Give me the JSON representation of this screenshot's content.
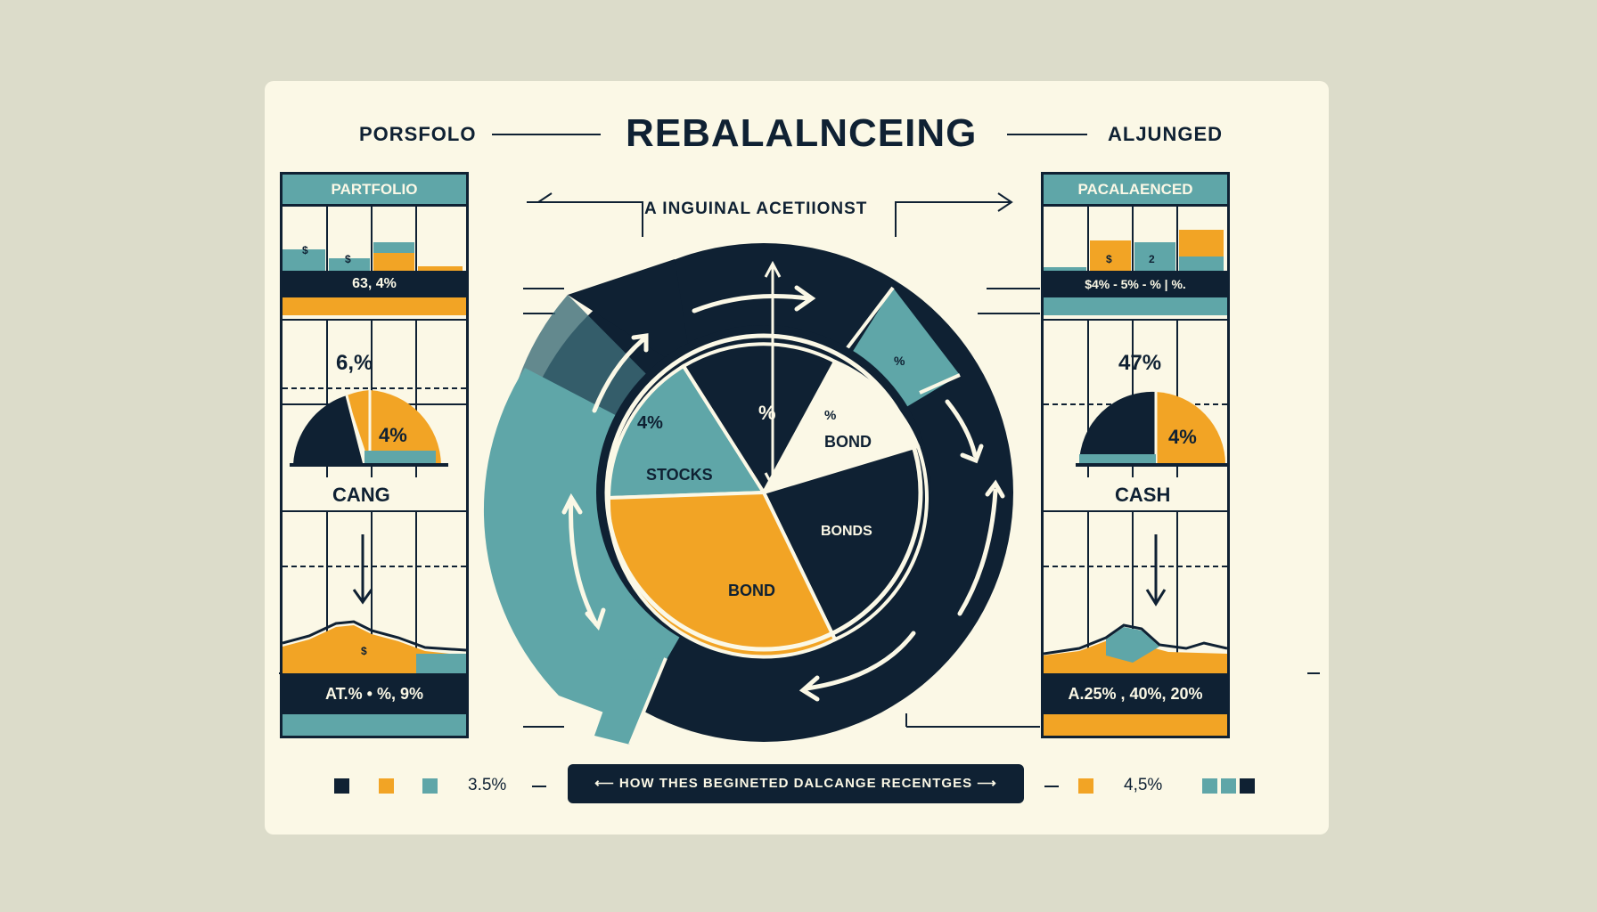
{
  "header": {
    "left_label": "PORSFOLO",
    "title": "REBALALNCEING",
    "right_label": "ALJUNGED",
    "subtitle": "A INGUINAL ACETIIONST"
  },
  "left_panel": {
    "heading": "PARTFOLIO",
    "values_bar": "63, 4%",
    "semi_top": "6,%",
    "semi_inner": "4%",
    "label": "CANG",
    "bottom_values": "AT.% • %, 9%",
    "bar_icons": [
      "$",
      "$"
    ],
    "line_icon": "$"
  },
  "right_panel": {
    "heading": "PACALAENCED",
    "values_bar": "$4% - 5% - % | %.",
    "semi_top": "47%",
    "semi_inner": "4%",
    "label": "CASH",
    "bottom_values": "A.25% , 40%, 20%",
    "bar_icons": [
      "$",
      "2"
    ]
  },
  "pie": {
    "slices": [
      {
        "label": "STOCKS",
        "value_text": "4%",
        "color": "#5fa6a8"
      },
      {
        "label": "BOND",
        "value_text": "%",
        "color": "#fbf8e6"
      },
      {
        "label": "BONDS",
        "value_text": "",
        "color": "#0f2133"
      },
      {
        "label": "BOND",
        "value_text": "",
        "color": "#f2a425"
      }
    ],
    "center_mark": "%",
    "mark_small": "%"
  },
  "legend": {
    "left_value": "3.5%",
    "right_value": "4,5%",
    "pill_text": "HOW THES BEGINETED DALCANGE RECENTGES"
  },
  "colors": {
    "navy": "#0f2133",
    "teal": "#5fa6a8",
    "orange": "#f2a425",
    "cream": "#fbf8e6",
    "background": "#dcdcca"
  }
}
